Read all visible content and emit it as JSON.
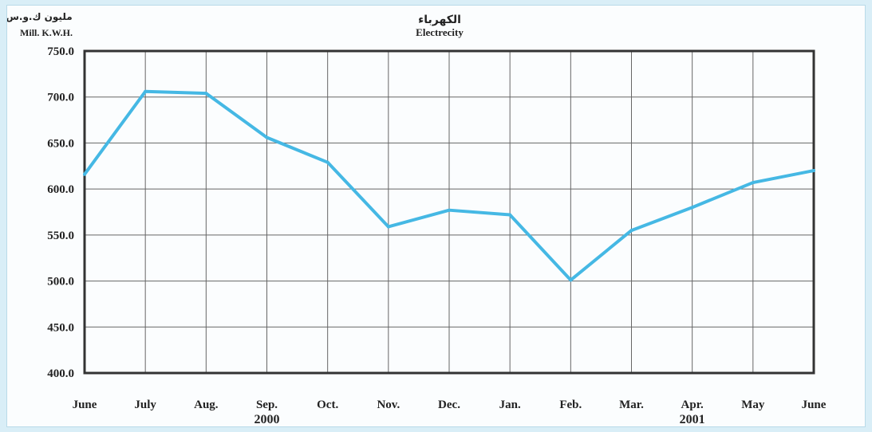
{
  "chart_data": {
    "type": "line",
    "title_ar": "الكهرباء",
    "title": "Electrecity",
    "ylabel_ar": "مليون ك.و.س",
    "ylabel": "Mill. K.W.H.",
    "categories": [
      "June",
      "July",
      "Aug.",
      "Sep.",
      "Oct.",
      "Nov.",
      "Dec.",
      "Jan.",
      "Feb.",
      "Mar.",
      "Apr.",
      "May",
      "June"
    ],
    "values": [
      616,
      706,
      704,
      656,
      629,
      559,
      577,
      572,
      501,
      555,
      580,
      607,
      620
    ],
    "ylim": [
      400,
      750
    ],
    "yticks": [
      "750.0",
      "700.0",
      "650.0",
      "600.0",
      "550.0",
      "500.0",
      "450.0",
      "400.0"
    ],
    "year_labels": [
      {
        "text": "2000",
        "at_category": 3
      },
      {
        "text": "2001",
        "at_category": 10
      }
    ],
    "grid": true,
    "line_color": "#45b8e4",
    "grid_color": "#666666",
    "axis_color": "#333333"
  }
}
